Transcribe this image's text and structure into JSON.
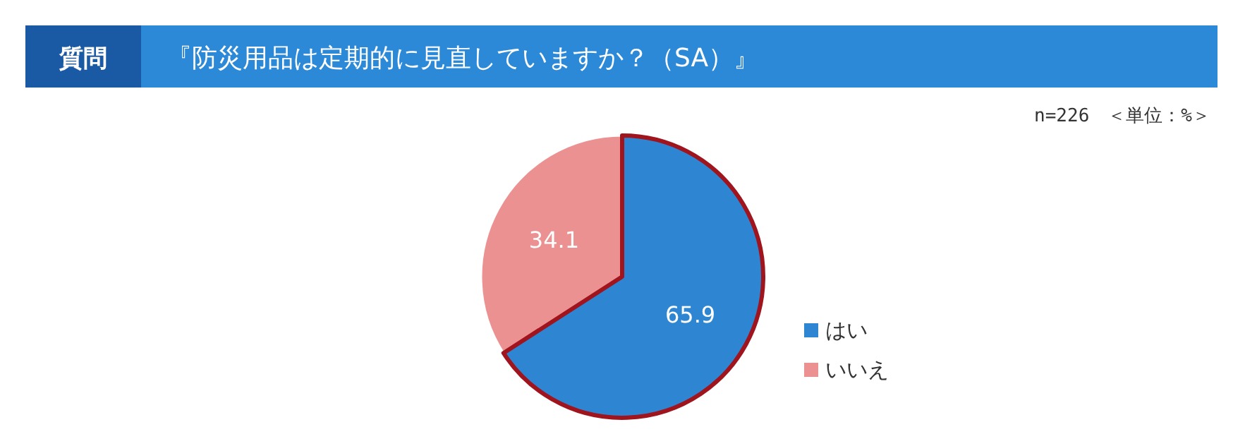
{
  "chart_data": {
    "type": "pie",
    "title": "『防災用品は定期的に見直していますか？（SA）』",
    "annotations": [
      "質問",
      "n=226　＜単位：%＞"
    ],
    "categories": [
      "はい",
      "いいえ"
    ],
    "values": [
      65.9,
      34.1
    ],
    "colors": [
      "#2e86d3",
      "#ec9191"
    ],
    "data_labels": true,
    "legend": "right"
  }
}
